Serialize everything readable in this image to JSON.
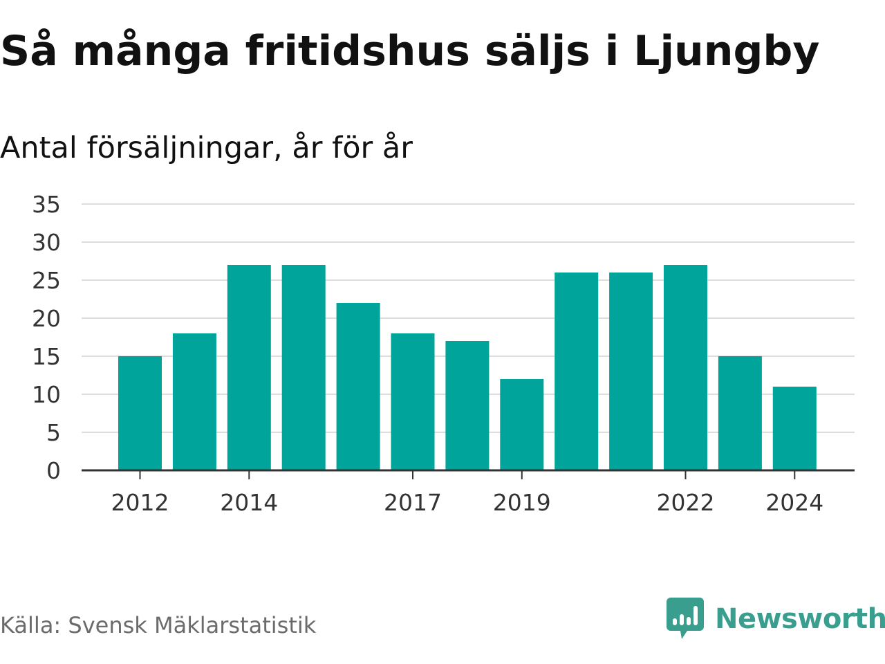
{
  "header": {
    "title": "Så många fritidshus säljs i Ljungby",
    "subtitle": "Antal försäljningar, år för år"
  },
  "footer": {
    "source": "Källa: Svensk Mäklarstatistik",
    "brand": "Newsworthy",
    "brand_icon": "bar-chart-speech-bubble-icon"
  },
  "colors": {
    "bar": "#00a49a",
    "brand": "#3a9e8f",
    "grid": "#dddddd",
    "axis": "#333333"
  },
  "chart_data": {
    "type": "bar",
    "title": "Så många fritidshus säljs i Ljungby",
    "subtitle": "Antal försäljningar, år för år",
    "xlabel": "",
    "ylabel": "",
    "categories": [
      "2012",
      "2013",
      "2014",
      "2015",
      "2016",
      "2017",
      "2018",
      "2019",
      "2020",
      "2021",
      "2022",
      "2023",
      "2024"
    ],
    "values": [
      15,
      18,
      27,
      27,
      22,
      18,
      17,
      12,
      26,
      26,
      27,
      15,
      11
    ],
    "x_tick_labels": [
      "2012",
      "2014",
      "2017",
      "2019",
      "2022",
      "2024"
    ],
    "y_ticks": [
      0,
      5,
      10,
      15,
      20,
      25,
      30,
      35
    ],
    "ylim": [
      0,
      35
    ],
    "grid": true,
    "legend": "none"
  }
}
